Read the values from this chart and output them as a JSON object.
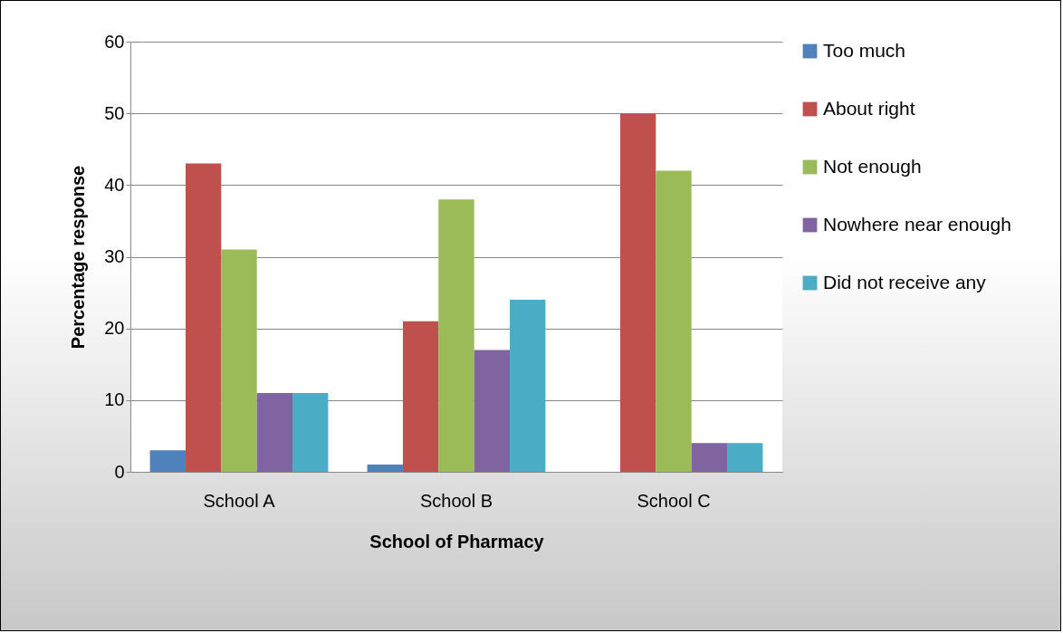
{
  "chart_data": {
    "type": "bar",
    "xlabel": "School of Pharmacy",
    "ylabel": "Percentage response",
    "categories": [
      "School A",
      "School B",
      "School C"
    ],
    "series": [
      {
        "name": "Too much",
        "color": "#4f81bd",
        "values": [
          3,
          1,
          0
        ]
      },
      {
        "name": "About right",
        "color": "#c0504d",
        "values": [
          43,
          21,
          50
        ]
      },
      {
        "name": "Not enough",
        "color": "#9bbb59",
        "values": [
          31,
          38,
          42
        ]
      },
      {
        "name": "Nowhere near enough",
        "color": "#8064a2",
        "values": [
          11,
          17,
          4
        ]
      },
      {
        "name": "Did not receive any",
        "color": "#4bacc6",
        "values": [
          11,
          24,
          4
        ]
      }
    ],
    "ylim": [
      0,
      60
    ],
    "yticks": [
      0,
      10,
      20,
      30,
      40,
      50,
      60
    ],
    "grid": "y",
    "legend": "right"
  }
}
